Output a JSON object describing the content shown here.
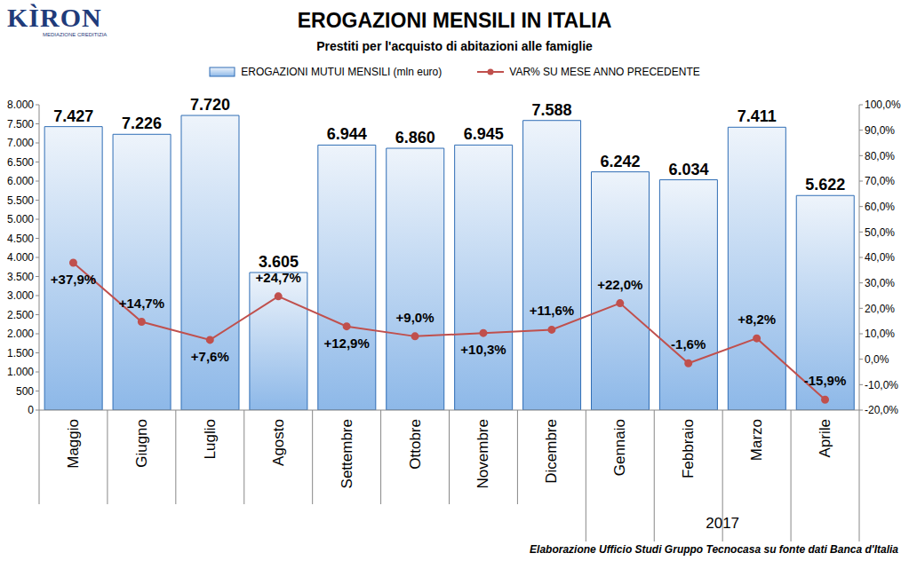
{
  "chart_data": {
    "type": "bar",
    "title": "EROGAZIONI MENSILI IN ITALIA",
    "subtitle": "Prestiti per l'acquisto di abitazioni alle famiglie",
    "logo": {
      "text": "KÌRON",
      "tagline": "MEDIAZIONE CREDITIZIA"
    },
    "source": "Elaborazione Ufficio Studi Gruppo Tecnocasa su fonte dati Banca d'Italia",
    "groups": [
      {
        "label": "2017",
        "start": "Gennaio"
      }
    ],
    "categories": [
      "Maggio",
      "Giugno",
      "Luglio",
      "Agosto",
      "Settembre",
      "Ottobre",
      "Novembre",
      "Dicembre",
      "Gennaio",
      "Febbraio",
      "Marzo",
      "Aprile"
    ],
    "series": [
      {
        "name": "EROGAZIONI MUTUI MENSILI (mln euro)",
        "type": "bar",
        "color": "#8db8e8",
        "values": [
          7427,
          7226,
          7720,
          3605,
          6944,
          6860,
          6945,
          7588,
          6242,
          6034,
          7411,
          5622
        ],
        "value_labels": [
          "7.427",
          "7.226",
          "7.720",
          "3.605",
          "6.944",
          "6.860",
          "6.945",
          "7.588",
          "6.242",
          "6.034",
          "7.411",
          "5.622"
        ]
      },
      {
        "name": "VAR% SU MESE ANNO PRECEDENTE",
        "type": "line",
        "axis": "y2",
        "color": "#c0504d",
        "marker": "circle",
        "values": [
          37.9,
          14.7,
          7.6,
          24.7,
          12.9,
          9.0,
          10.3,
          11.6,
          22.0,
          -1.6,
          8.2,
          -15.9
        ],
        "value_labels": [
          "+37,9%",
          "+14,7%",
          "+7,6%",
          "+24,7%",
          "+12,9%",
          "+9,0%",
          "+10,3%",
          "+11,6%",
          "+22,0%",
          "-1,6%",
          "+8,2%",
          "-15,9%"
        ]
      }
    ],
    "ylim": [
      0,
      8000
    ],
    "yticks": [
      0,
      {
        "value": 500,
        "label": "500"
      },
      {
        "value": 1000,
        "label": "1.000"
      },
      {
        "value": 1500,
        "label": "1.500"
      },
      {
        "value": 2000,
        "label": "2.000"
      },
      {
        "value": 2500,
        "label": "2.500"
      },
      {
        "value": 3000,
        "label": "3.000"
      },
      {
        "value": 3500,
        "label": "3.500"
      },
      {
        "value": 4000,
        "label": "4.000"
      },
      {
        "value": 4500,
        "label": "4.500"
      },
      {
        "value": 5000,
        "label": "5.000"
      },
      {
        "value": 5500,
        "label": "5.500"
      },
      {
        "value": 6000,
        "label": "6.000"
      },
      {
        "value": 6500,
        "label": "6.500"
      },
      {
        "value": 7000,
        "label": "7.000"
      },
      {
        "value": 7500,
        "label": "7.500"
      },
      {
        "value": 8000,
        "label": "8.000"
      }
    ],
    "y2lim": [
      -20,
      100
    ],
    "y2ticks": [
      {
        "value": -20,
        "label": "-20,0%"
      },
      {
        "value": -10,
        "label": "-10,0%"
      },
      {
        "value": 0,
        "label": "0,0%"
      },
      {
        "value": 10,
        "label": "10,0%"
      },
      {
        "value": 20,
        "label": "20,0%"
      },
      {
        "value": 30,
        "label": "30,0%"
      },
      {
        "value": 40,
        "label": "40,0%"
      },
      {
        "value": 50,
        "label": "50,0%"
      },
      {
        "value": 60,
        "label": "60,0%"
      },
      {
        "value": 70,
        "label": "70,0%"
      },
      {
        "value": 80,
        "label": "80,0%"
      },
      {
        "value": 90,
        "label": "90,0%"
      },
      {
        "value": 100,
        "label": "100,0%"
      }
    ],
    "grid": false,
    "legend": "top",
    "data_labels": true
  }
}
